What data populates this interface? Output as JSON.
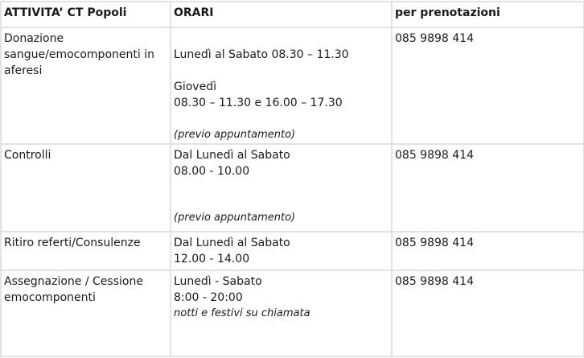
{
  "headers": [
    "ATTIVITA’ CT Popoli",
    "ORARI",
    "per prenotazioni"
  ],
  "rows": [
    {
      "activity": "Donazione sangue/emocomponenti in aferesi",
      "hours": [
        "Lunedì al Sabato 08.30 – 11.30",
        "Giovedì",
        "08.30 – 11.30 e 16.00 – 17.30"
      ],
      "note": "(previo appuntamento)",
      "phone": "085 9898 414"
    },
    {
      "activity": "Controlli",
      "hours": [
        "Dal Lunedì al Sabato",
        "08.00 - 10.00"
      ],
      "note": "(previo appuntamento)",
      "phone": "085 9898 414"
    },
    {
      "activity": "Ritiro referti/Consulenze",
      "hours": [
        "Dal Lunedì al Sabato",
        "12.00 - 14.00"
      ],
      "phone": "085 9898 414"
    },
    {
      "activity": "Assegnazione / Cessione emocomponenti",
      "hours": [
        "Lunedì - Sabato",
        "8:00 - 20:00"
      ],
      "note": "notti e festivi su chiamata",
      "phone": "085 9898 414"
    }
  ]
}
